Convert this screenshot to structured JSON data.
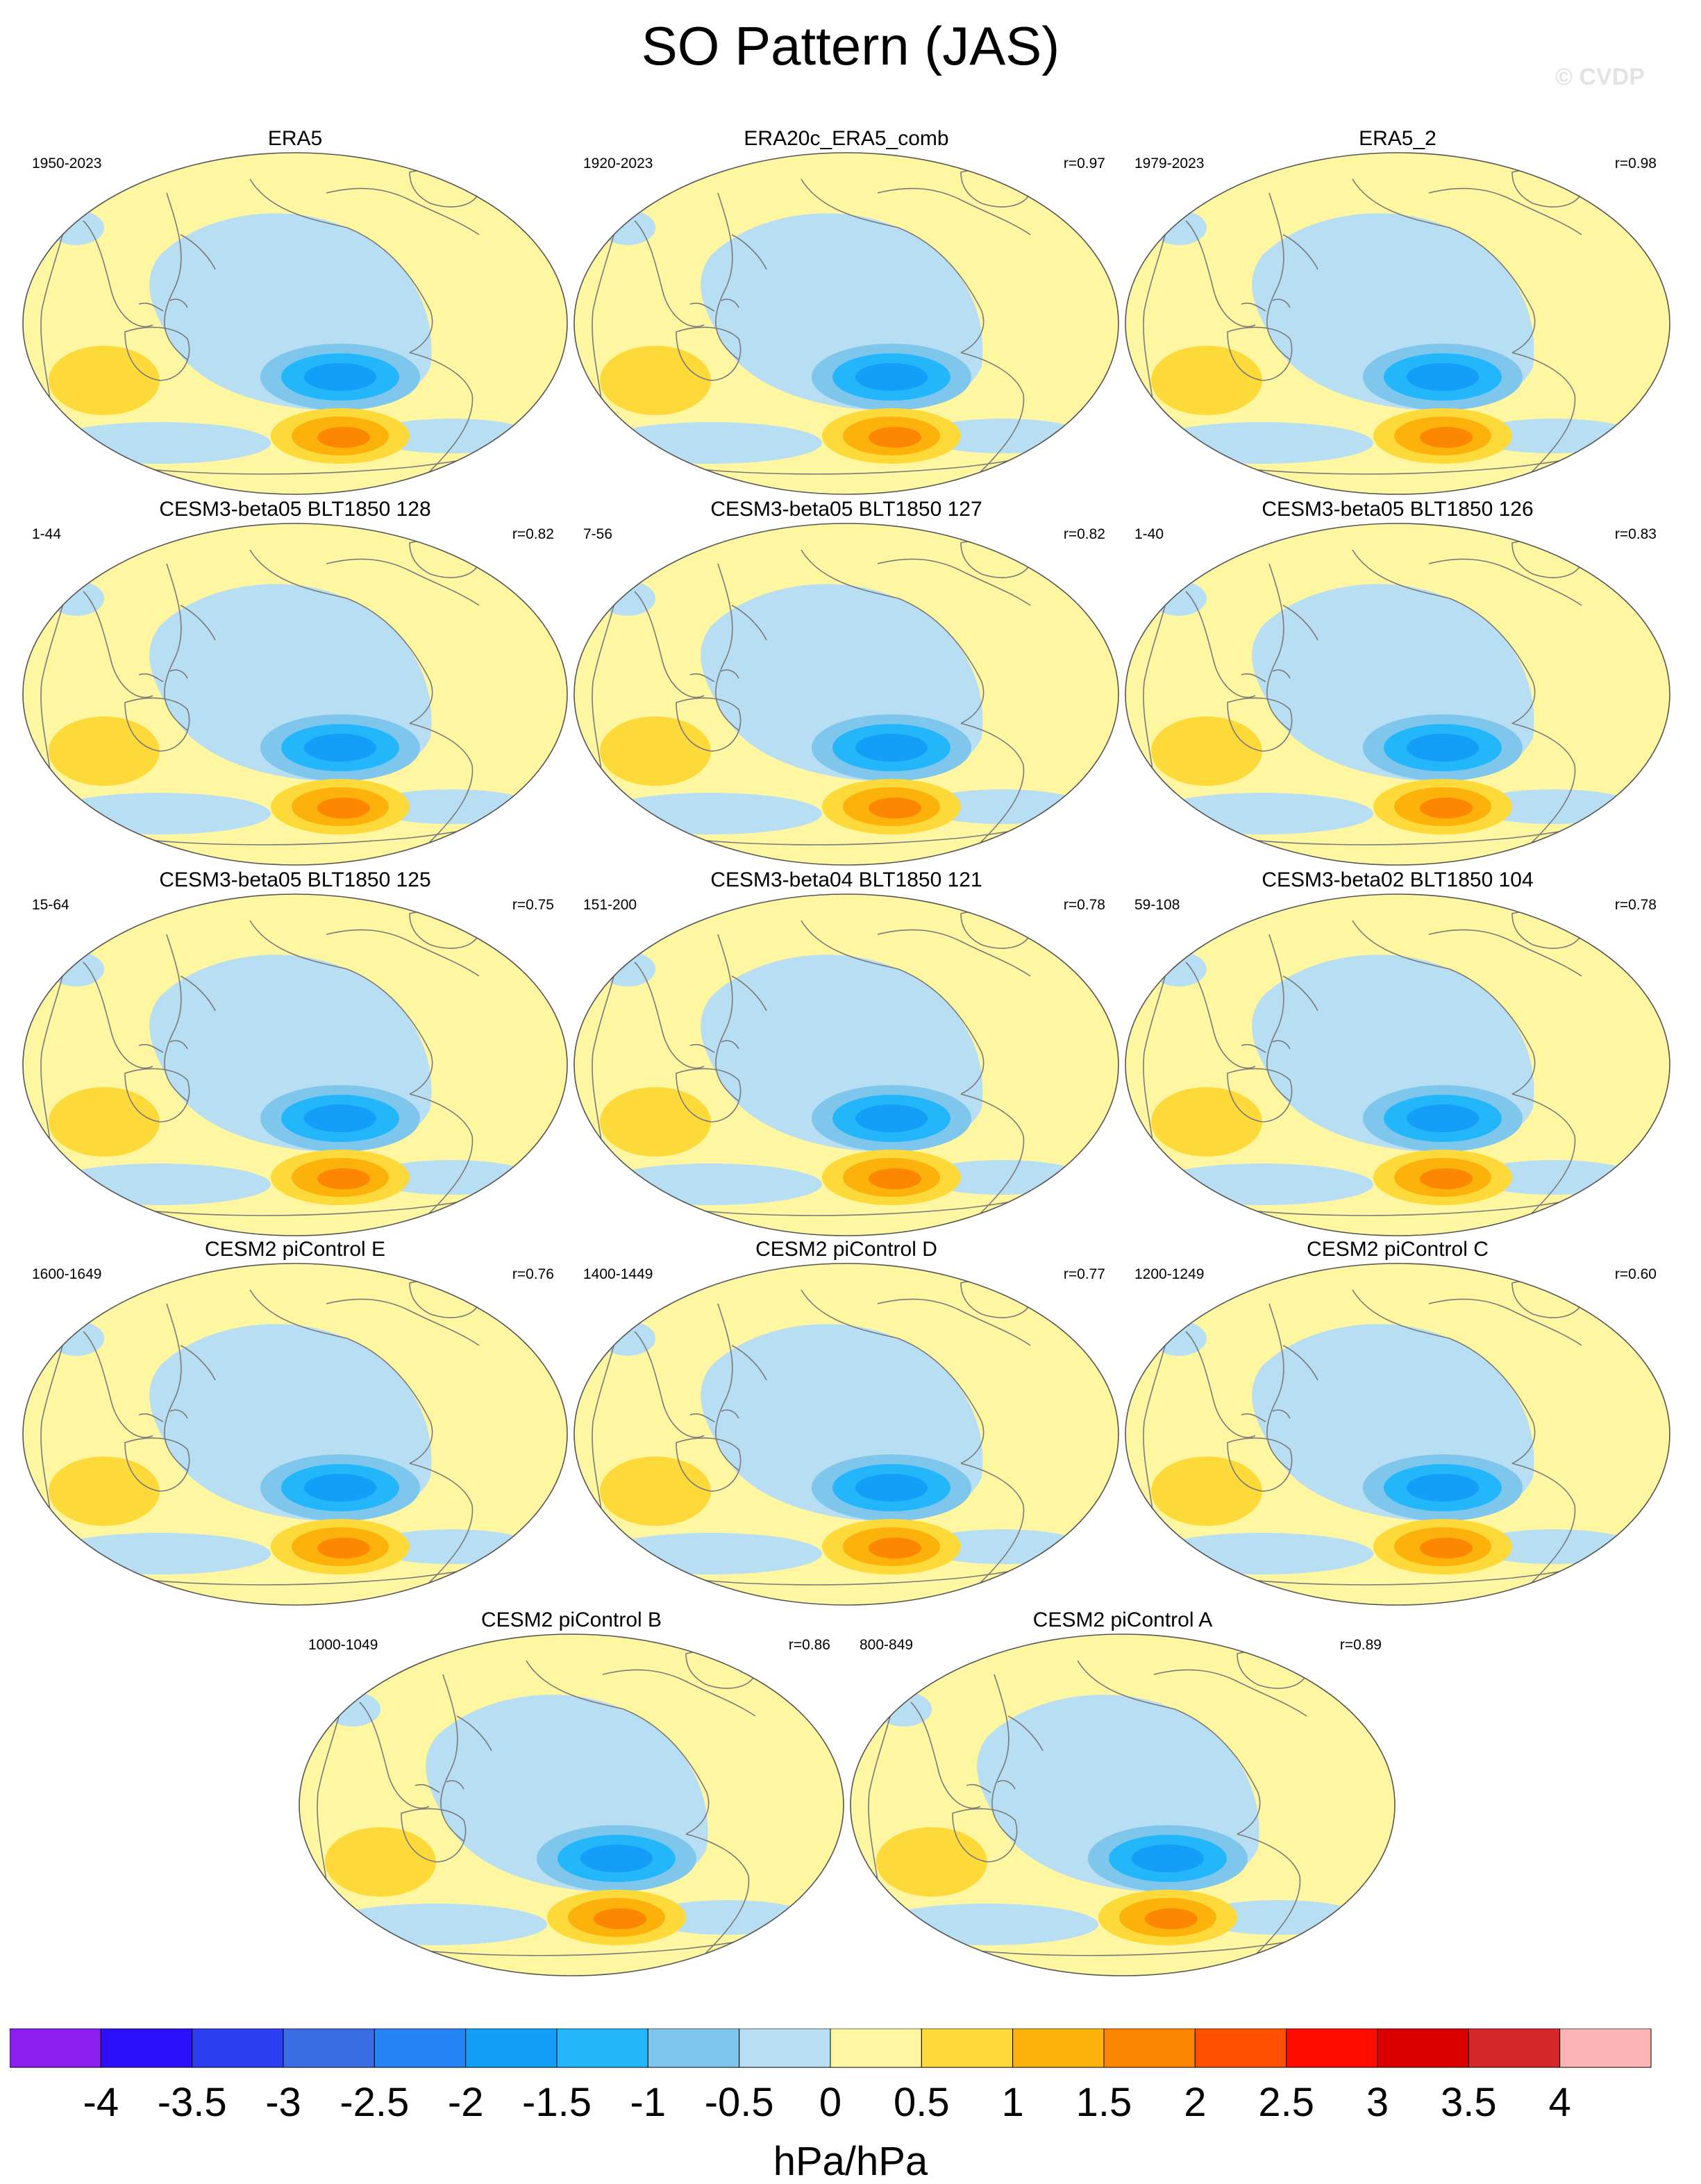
{
  "header": {
    "title": "SO Pattern (JAS)",
    "watermark": "© CVDP"
  },
  "legend": {
    "colors": [
      "#8c1ff0",
      "#2c0ffb",
      "#2b3ff0",
      "#3a6de3",
      "#2483f5",
      "#149ef7",
      "#24b6fa",
      "#7fc6ec",
      "#b7def2",
      "#fff6a1",
      "#fdd93a",
      "#fdb10b",
      "#fd8700",
      "#fd5000",
      "#fd0d00",
      "#d90000",
      "#d42828",
      "#fcb3b3"
    ],
    "tick_labels": [
      "-4",
      "-3.5",
      "-3",
      "-2.5",
      "-2",
      "-1.5",
      "-1",
      "-0.5",
      "0",
      "0.5",
      "1",
      "1.5",
      "2",
      "2.5",
      "3",
      "3.5",
      "4"
    ],
    "unit": "hPa/hPa"
  },
  "panels": [
    {
      "name": "ERA5",
      "years": "1950-2023",
      "corr": ""
    },
    {
      "name": "ERA20c_ERA5_comb",
      "years": "1920-2023",
      "corr": "r=0.97"
    },
    {
      "name": "ERA5_2",
      "years": "1979-2023",
      "corr": "r=0.98"
    },
    {
      "name": "CESM3-beta05 BLT1850 128",
      "years": "1-44",
      "corr": "r=0.82"
    },
    {
      "name": "CESM3-beta05 BLT1850 127",
      "years": "7-56",
      "corr": "r=0.82"
    },
    {
      "name": "CESM3-beta05 BLT1850 126",
      "years": "1-40",
      "corr": "r=0.83"
    },
    {
      "name": "CESM3-beta05 BLT1850 125",
      "years": "15-64",
      "corr": "r=0.75"
    },
    {
      "name": "CESM3-beta04 BLT1850 121",
      "years": "151-200",
      "corr": "r=0.78"
    },
    {
      "name": "CESM3-beta02 BLT1850 104",
      "years": "59-108",
      "corr": "r=0.78"
    },
    {
      "name": "CESM2 piControl E",
      "years": "1600-1649",
      "corr": "r=0.76"
    },
    {
      "name": "CESM2 piControl D",
      "years": "1400-1449",
      "corr": "r=0.77"
    },
    {
      "name": "CESM2 piControl C",
      "years": "1200-1249",
      "corr": "r=0.60"
    },
    {
      "name": "CESM2 piControl B",
      "years": "1000-1049",
      "corr": "r=0.86"
    },
    {
      "name": "CESM2 piControl A",
      "years": "800-849",
      "corr": "r=0.89"
    }
  ]
}
